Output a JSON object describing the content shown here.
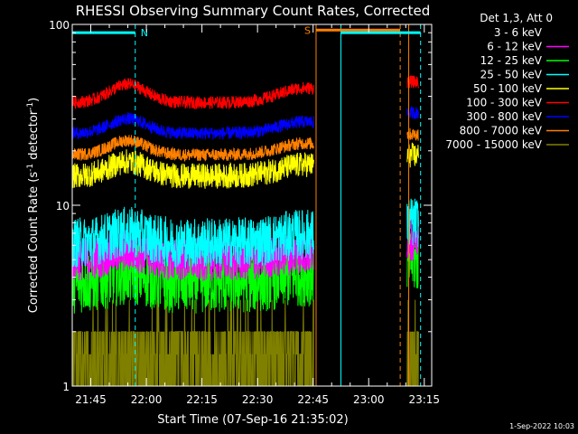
{
  "chart_data": {
    "type": "line",
    "title": "RHESSI Observing Summary Count Rates, Corrected",
    "xlabel": "Start Time (07-Sep-16 21:35:02)",
    "ylabel_main": "Corrected Count Rate (s",
    "ylabel_sup": "-1",
    "ylabel_mid": " detector",
    "ylabel_tail": ")",
    "yscale": "log",
    "ylim": [
      1,
      100
    ],
    "y_ticks": [
      {
        "value": 1,
        "label": "1"
      },
      {
        "value": 10,
        "label": "10"
      },
      {
        "value": 100,
        "label": "100"
      }
    ],
    "xlim_min": [
      5.0,
      102.0
    ],
    "x_ticks": [
      {
        "min": 10,
        "label": "21:45"
      },
      {
        "min": 25,
        "label": "22:00"
      },
      {
        "min": 40,
        "label": "22:15"
      },
      {
        "min": 55,
        "label": "22:30"
      },
      {
        "min": 70,
        "label": "22:45"
      },
      {
        "min": 85,
        "label": "23:00"
      },
      {
        "min": 100,
        "label": "23:15"
      }
    ],
    "gaps_min": [
      [
        70.2,
        95.3
      ]
    ],
    "legend_title": "Det 1,3, Att 0",
    "series": [
      {
        "name": "3 - 6 keV",
        "color": "#000000",
        "level": 1.5,
        "noise": 0.35,
        "bump": 0
      },
      {
        "name": "6 - 12 keV",
        "color": "#ff00ff",
        "level": 5.0,
        "noise": 0.12,
        "bump": 0.05
      },
      {
        "name": "12 - 25 keV",
        "color": "#00ff00",
        "level": 3.8,
        "noise": 0.18,
        "bump": 0.05
      },
      {
        "name": "25 - 50 keV",
        "color": "#00ffff",
        "level": 6.2,
        "noise": 0.14,
        "bump": 0.06
      },
      {
        "name": "50 - 100 keV",
        "color": "#ffff00",
        "level": 14.5,
        "noise": 0.07,
        "bump": 0.08
      },
      {
        "name": "100 - 300 keV",
        "color": "#ff0000",
        "level": 37,
        "noise": 0.035,
        "bump": 0.1
      },
      {
        "name": "300 - 800 keV",
        "color": "#0000ff",
        "level": 25,
        "noise": 0.035,
        "bump": 0.08
      },
      {
        "name": "800 - 7000 keV",
        "color": "#ff8000",
        "level": 19,
        "noise": 0.035,
        "bump": 0.08
      },
      {
        "name": "7000 - 15000 keV",
        "color": "#808000",
        "level": 1.5,
        "noise": 0.3,
        "bump": 0
      }
    ],
    "flags": [
      {
        "label": "N",
        "color": "#00ffff",
        "start_min": 5.0,
        "end_min": 22.0,
        "level": 90
      },
      {
        "label": "S",
        "color": "#ff8000",
        "start_min": 70.8,
        "end_min": 93.5,
        "level": 93
      },
      {
        "label": "",
        "color": "#00ffff",
        "start_min": 77.5,
        "end_min": 99.0,
        "level": 90
      }
    ],
    "vlines": [
      {
        "min": 22.0,
        "color": "#00ffff",
        "dashed": true
      },
      {
        "min": 70.8,
        "color": "#ff8000",
        "dashed": false
      },
      {
        "min": 77.5,
        "color": "#00ffff",
        "dashed": false
      },
      {
        "min": 93.5,
        "color": "#ff8000",
        "dashed": true
      },
      {
        "min": 95.8,
        "color": "#ff8000",
        "dashed": false
      },
      {
        "min": 99.0,
        "color": "#00ffff",
        "dashed": true
      }
    ],
    "grid": false
  },
  "footer": {
    "timestamp": "1-Sep-2022 10:03"
  }
}
